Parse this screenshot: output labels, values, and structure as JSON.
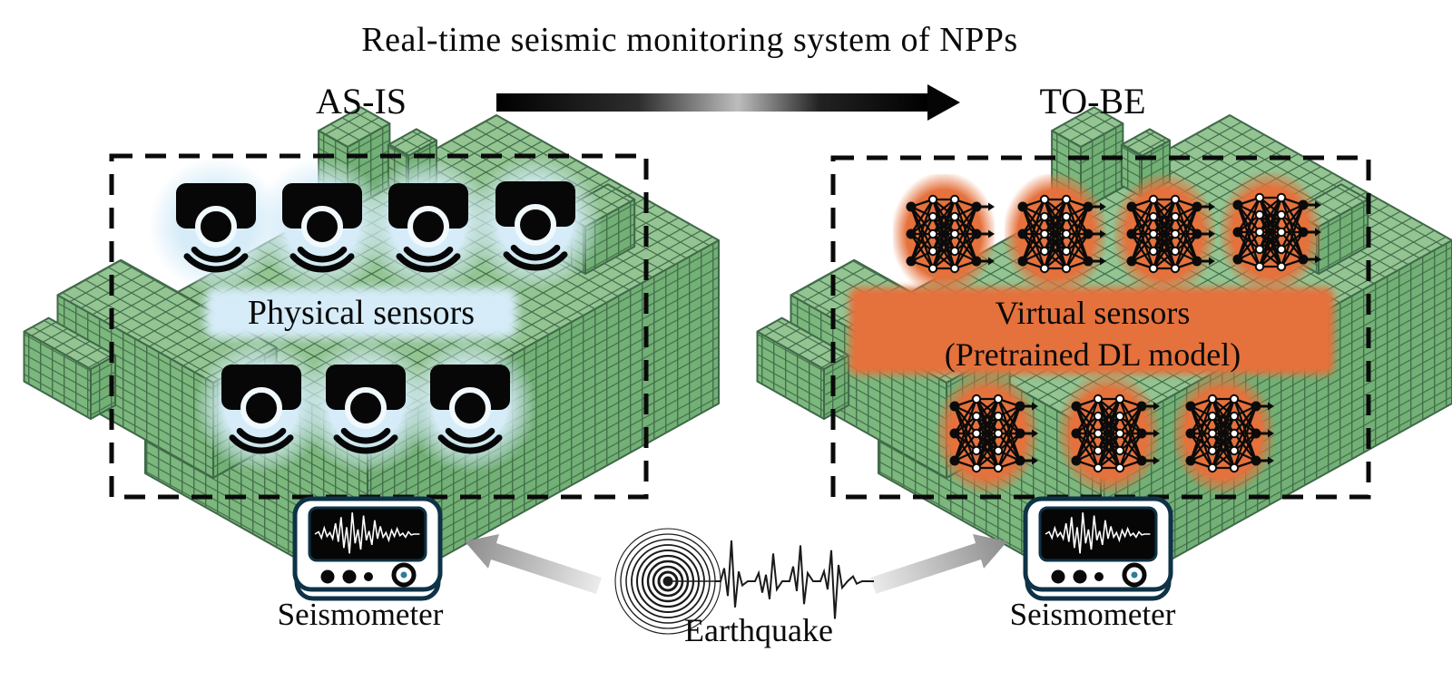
{
  "title": "Real-time seismic monitoring system of NPPs",
  "as_is": {
    "label": "AS-IS",
    "sensors_label": "Physical sensors",
    "sensor_icon": "motion-sensor-icon",
    "sensors_top_count": 4,
    "sensors_bottom_count": 3,
    "seismometer_label": "Seismometer"
  },
  "to_be": {
    "label": "TO-BE",
    "sensors_label_line1": "Virtual sensors",
    "sensors_label_line2": "(Pretrained DL model)",
    "sensor_icon": "neural-network-icon",
    "sensors_top_count": 4,
    "sensors_bottom_count": 3,
    "seismometer_label": "Seismometer"
  },
  "earthquake_label": "Earthquake",
  "colors": {
    "background": "#ffffff",
    "building_top": "#93c492",
    "building_left": "#7cb77d",
    "building_right": "#72b075",
    "mesh_line": "#44704c",
    "outline": "#3f6848",
    "physical_glow": "#d6ecf8",
    "virtual_glow": "#e5713c",
    "text": "#0a0a0a",
    "device_frame": "#0e3246",
    "device_knob": "#2a7f96",
    "arrow_black": "#0a0a0a",
    "arrow_gray_light": "#ededed",
    "arrow_gray_dark": "#8c8c8c"
  }
}
